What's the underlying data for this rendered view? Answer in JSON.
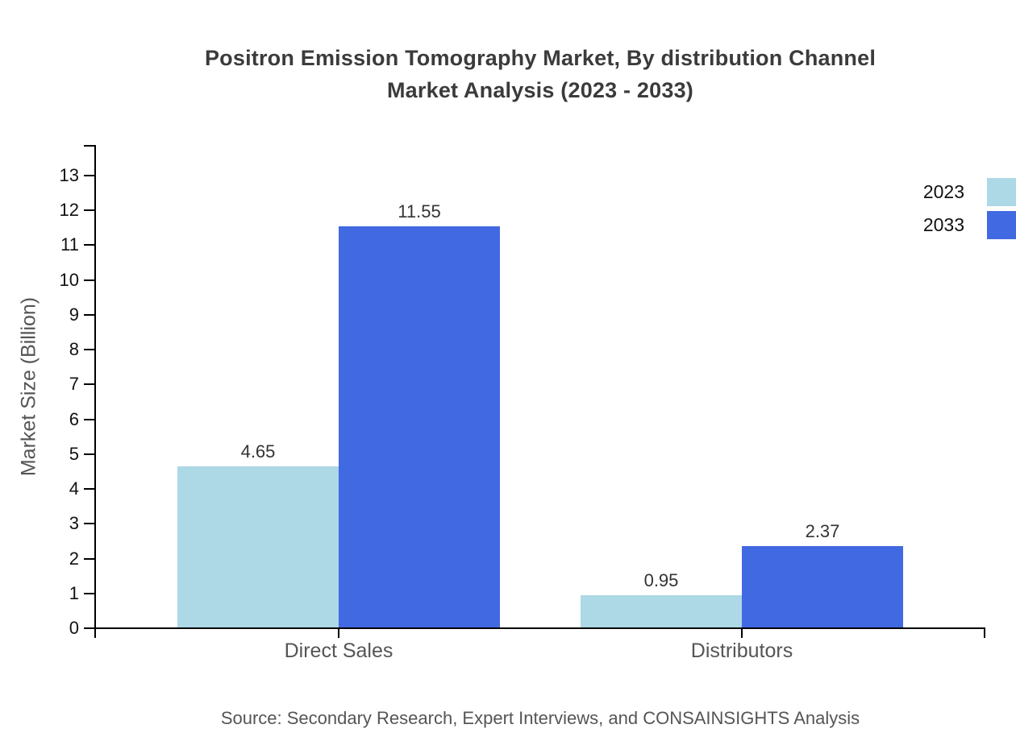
{
  "chart_data": {
    "type": "bar",
    "title": "Positron Emission Tomography Market, By distribution Channel Market Analysis (2023 - 2033)",
    "title_lines": [
      "Positron Emission Tomography Market, By distribution Channel",
      "Market Analysis (2023 - 2033)"
    ],
    "categories": [
      "Direct Sales",
      "Distributors"
    ],
    "series": [
      {
        "name": "2023",
        "color": "#ADD8E6",
        "values": [
          4.65,
          0.95
        ]
      },
      {
        "name": "2033",
        "color": "#4169E1",
        "values": [
          11.55,
          2.37
        ]
      }
    ],
    "value_labels": [
      "4.65",
      "11.55",
      "0.95",
      "2.37"
    ],
    "xlabel": "",
    "ylabel": "Market Size (Billion)",
    "ylim": [
      0,
      13
    ],
    "yticks": [
      0,
      1,
      2,
      3,
      4,
      5,
      6,
      7,
      8,
      9,
      10,
      11,
      12,
      13
    ],
    "grid": false,
    "legend_position": "top-right",
    "legend": [
      "2023",
      "2033"
    ]
  },
  "source_text": "Source: Secondary Research, Expert Interviews, and CONSAINSIGHTS Analysis"
}
